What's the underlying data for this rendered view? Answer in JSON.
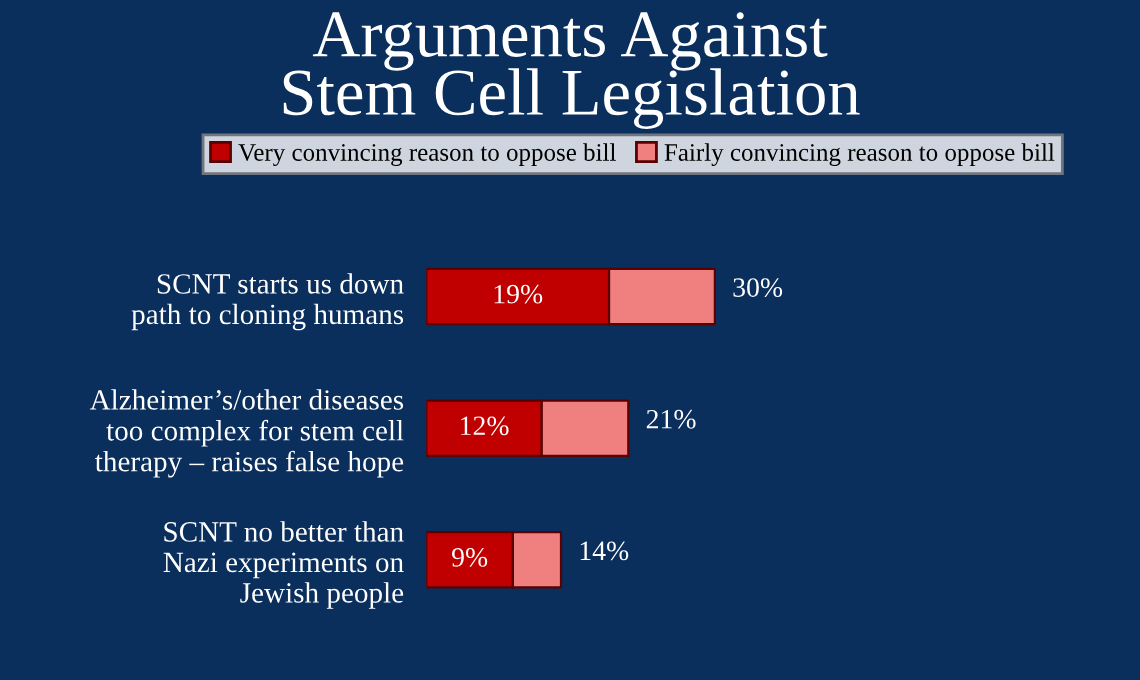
{
  "chart_data": {
    "type": "bar",
    "orientation": "horizontal",
    "stacked": true,
    "title": "Arguments Against\nStem Cell Legislation",
    "categories": [
      "SCNT starts us down\npath to cloning humans",
      "Alzheimer’s/other diseases\ntoo complex for stem cell\ntherapy – raises false hope",
      "SCNT no better than\nNazi experiments on\nJewish people"
    ],
    "series": [
      {
        "name": "Very convincing reason to oppose bill",
        "color": "#c00000",
        "values": [
          19,
          12,
          9
        ],
        "value_labels": [
          "19%",
          "12%",
          "9%"
        ]
      },
      {
        "name": "Fairly convincing reason to oppose bill",
        "color": "#f08080",
        "values": [
          11,
          9,
          5
        ]
      }
    ],
    "totals": [
      "30%",
      "21%",
      "14%"
    ],
    "legend": "top",
    "grid": false
  }
}
